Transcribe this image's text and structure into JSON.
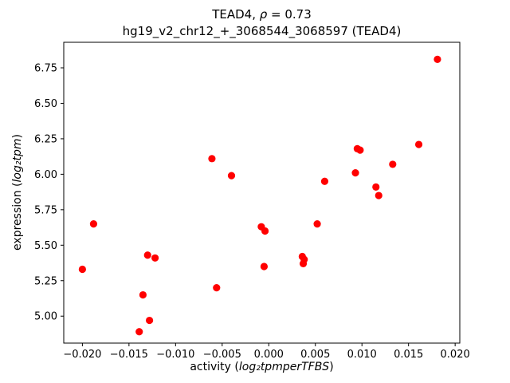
{
  "figure": {
    "title_line1": {
      "pre": "TEAD4, ",
      "math": "ρ",
      "post": " = 0.73"
    },
    "title_line2": "hg19_v2_chr12_+_3068544_3068597 (TEAD4)",
    "xlabel": {
      "pre": "activity (",
      "math": "log₂tpmperTFBS",
      "post": ")"
    },
    "ylabel": {
      "pre": "expression (",
      "math": "log₂tpm",
      "post": ")"
    }
  },
  "chart_data": {
    "type": "scatter",
    "title": "TEAD4, ρ = 0.73",
    "subtitle": "hg19_v2_chr12_+_3068544_3068597 (TEAD4)",
    "xlabel": "activity (log₂tpmperTFBS)",
    "ylabel": "expression (log₂tpm)",
    "xlim": [
      -0.022,
      0.0205
    ],
    "ylim": [
      4.81,
      6.93
    ],
    "grid": false,
    "legend": null,
    "marker": {
      "color": "#ff0000",
      "radius_px": 4.6
    },
    "xticks": {
      "values": [
        -0.02,
        -0.015,
        -0.01,
        -0.005,
        0.0,
        0.005,
        0.01,
        0.015,
        0.02
      ],
      "labels": [
        "−0.020",
        "−0.015",
        "−0.010",
        "−0.005",
        "0.000",
        "0.005",
        "0.010",
        "0.015",
        "0.020"
      ]
    },
    "yticks": {
      "values": [
        5.0,
        5.25,
        5.5,
        5.75,
        6.0,
        6.25,
        6.5,
        6.75
      ],
      "labels": [
        "5.00",
        "5.25",
        "5.50",
        "5.75",
        "6.00",
        "6.25",
        "6.50",
        "6.75"
      ]
    },
    "points": [
      [
        -0.02,
        5.33
      ],
      [
        -0.0188,
        5.65
      ],
      [
        -0.0139,
        4.89
      ],
      [
        -0.0135,
        5.15
      ],
      [
        -0.013,
        5.43
      ],
      [
        -0.0128,
        4.97
      ],
      [
        -0.0122,
        5.41
      ],
      [
        -0.0061,
        6.11
      ],
      [
        -0.0056,
        5.2
      ],
      [
        -0.004,
        5.99
      ],
      [
        -0.0008,
        5.63
      ],
      [
        -0.0005,
        5.35
      ],
      [
        -0.0004,
        5.6
      ],
      [
        0.0036,
        5.42
      ],
      [
        0.0037,
        5.37
      ],
      [
        0.0038,
        5.4
      ],
      [
        0.0052,
        5.65
      ],
      [
        0.006,
        5.95
      ],
      [
        0.0093,
        6.01
      ],
      [
        0.0095,
        6.18
      ],
      [
        0.0098,
        6.17
      ],
      [
        0.0115,
        5.91
      ],
      [
        0.0118,
        5.85
      ],
      [
        0.0133,
        6.07
      ],
      [
        0.0161,
        6.21
      ],
      [
        0.0181,
        6.81
      ]
    ]
  }
}
